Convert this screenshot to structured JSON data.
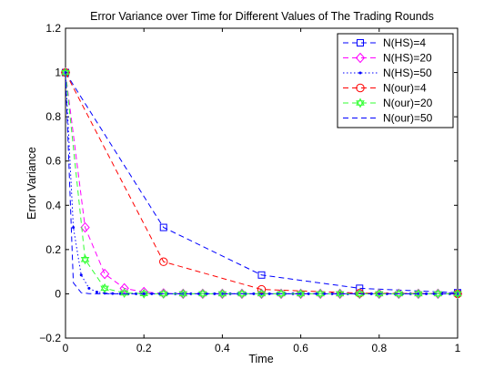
{
  "chart_data": {
    "type": "line",
    "title": "Error Variance over Time for Different Values of The Trading Rounds",
    "xlabel": "Time",
    "ylabel": "Error Variance",
    "xlim": [
      0,
      1
    ],
    "ylim": [
      -0.2,
      1.2
    ],
    "xticks": [
      0,
      0.2,
      0.4,
      0.6,
      0.8,
      1
    ],
    "xtick_labels": [
      "0",
      "0.2",
      "0.4",
      "0.6",
      "0.8",
      "1"
    ],
    "yticks": [
      -0.2,
      0,
      0.2,
      0.4,
      0.6,
      0.8,
      1,
      1.2
    ],
    "ytick_labels": [
      "−0.2",
      "0",
      "0.2",
      "0.4",
      "0.6",
      "0.8",
      "1",
      "1.2"
    ],
    "grid": false,
    "legend_position": "top-right",
    "series": [
      {
        "name": "N(HS)=4",
        "color": "#0000ff",
        "marker": "square",
        "line": "dashed",
        "x": [
          0,
          0.25,
          0.5,
          0.75,
          1.0
        ],
        "y": [
          1.0,
          0.3,
          0.085,
          0.025,
          0.005
        ]
      },
      {
        "name": "N(HS)=20",
        "color": "#ff00ff",
        "marker": "diamond",
        "line": "dashed",
        "x": [
          0,
          0.05,
          0.1,
          0.15,
          0.2,
          0.25,
          0.3,
          0.35,
          0.4,
          0.45,
          0.5,
          0.55,
          0.6,
          0.65,
          0.7,
          0.75,
          0.8,
          0.85,
          0.9,
          0.95,
          1.0
        ],
        "y": [
          1.0,
          0.3,
          0.09,
          0.025,
          0.008,
          0.002,
          0,
          0,
          0,
          0,
          0,
          0,
          0,
          0,
          0,
          0,
          0,
          0,
          0,
          0,
          0
        ]
      },
      {
        "name": "N(HS)=50",
        "color": "#0000ff",
        "marker": "dot",
        "line": "dotted",
        "x": [
          0,
          0.02,
          0.04,
          0.06,
          0.08,
          0.1,
          0.12,
          0.14,
          0.16,
          0.18,
          0.2,
          0.22,
          0.24,
          0.26,
          0.28,
          0.3,
          0.32,
          0.34,
          0.36,
          0.38,
          0.4,
          0.42,
          0.44,
          0.46,
          0.48,
          0.5,
          0.52,
          0.54,
          0.56,
          0.58,
          0.6,
          0.62,
          0.64,
          0.66,
          0.68,
          0.7,
          0.72,
          0.74,
          0.76,
          0.78,
          0.8,
          0.82,
          0.84,
          0.86,
          0.88,
          0.9,
          0.92,
          0.94,
          0.96,
          0.98,
          1.0
        ],
        "y": [
          1.0,
          0.3,
          0.085,
          0.025,
          0.008,
          0.003,
          0.001,
          0,
          0,
          0,
          0,
          0,
          0,
          0,
          0,
          0,
          0,
          0,
          0,
          0,
          0,
          0,
          0,
          0,
          0,
          0,
          0,
          0,
          0,
          0,
          0,
          0,
          0,
          0,
          0,
          0,
          0,
          0,
          0,
          0,
          0,
          0,
          0,
          0,
          0,
          0,
          0,
          0,
          0,
          0,
          0
        ]
      },
      {
        "name": "N(our)=4",
        "color": "#ff0000",
        "marker": "circle",
        "line": "dashed",
        "x": [
          0,
          0.25,
          0.5,
          0.75,
          1.0
        ],
        "y": [
          1.0,
          0.145,
          0.02,
          0.003,
          0.0
        ]
      },
      {
        "name": "N(our)=20",
        "color": "#33ff33",
        "marker": "hexagram",
        "line": "dashed",
        "x": [
          0,
          0.05,
          0.1,
          0.15,
          0.2,
          0.25,
          0.3,
          0.35,
          0.4,
          0.45,
          0.5,
          0.55,
          0.6,
          0.65,
          0.7,
          0.75,
          0.8,
          0.85,
          0.9,
          0.95,
          1.0
        ],
        "y": [
          1.0,
          0.155,
          0.025,
          0.004,
          0.001,
          0,
          0,
          0,
          0,
          0,
          0,
          0,
          0,
          0,
          0,
          0,
          0,
          0,
          0,
          0,
          0
        ]
      },
      {
        "name": "N(our)=50",
        "color": "#0000ff",
        "marker": "none",
        "line": "dashed",
        "x": [
          0,
          0.02,
          0.04,
          0.06,
          0.08,
          0.1,
          0.15,
          0.2,
          0.3,
          0.4,
          0.5,
          0.6,
          0.7,
          0.8,
          0.9,
          1.0
        ],
        "y": [
          1.0,
          0.05,
          0.005,
          0.001,
          0.0,
          0.0,
          0.0,
          0.0,
          0.0,
          0.0,
          0.0,
          0.0,
          0.0,
          0.0,
          0.0,
          0.0
        ]
      }
    ]
  }
}
